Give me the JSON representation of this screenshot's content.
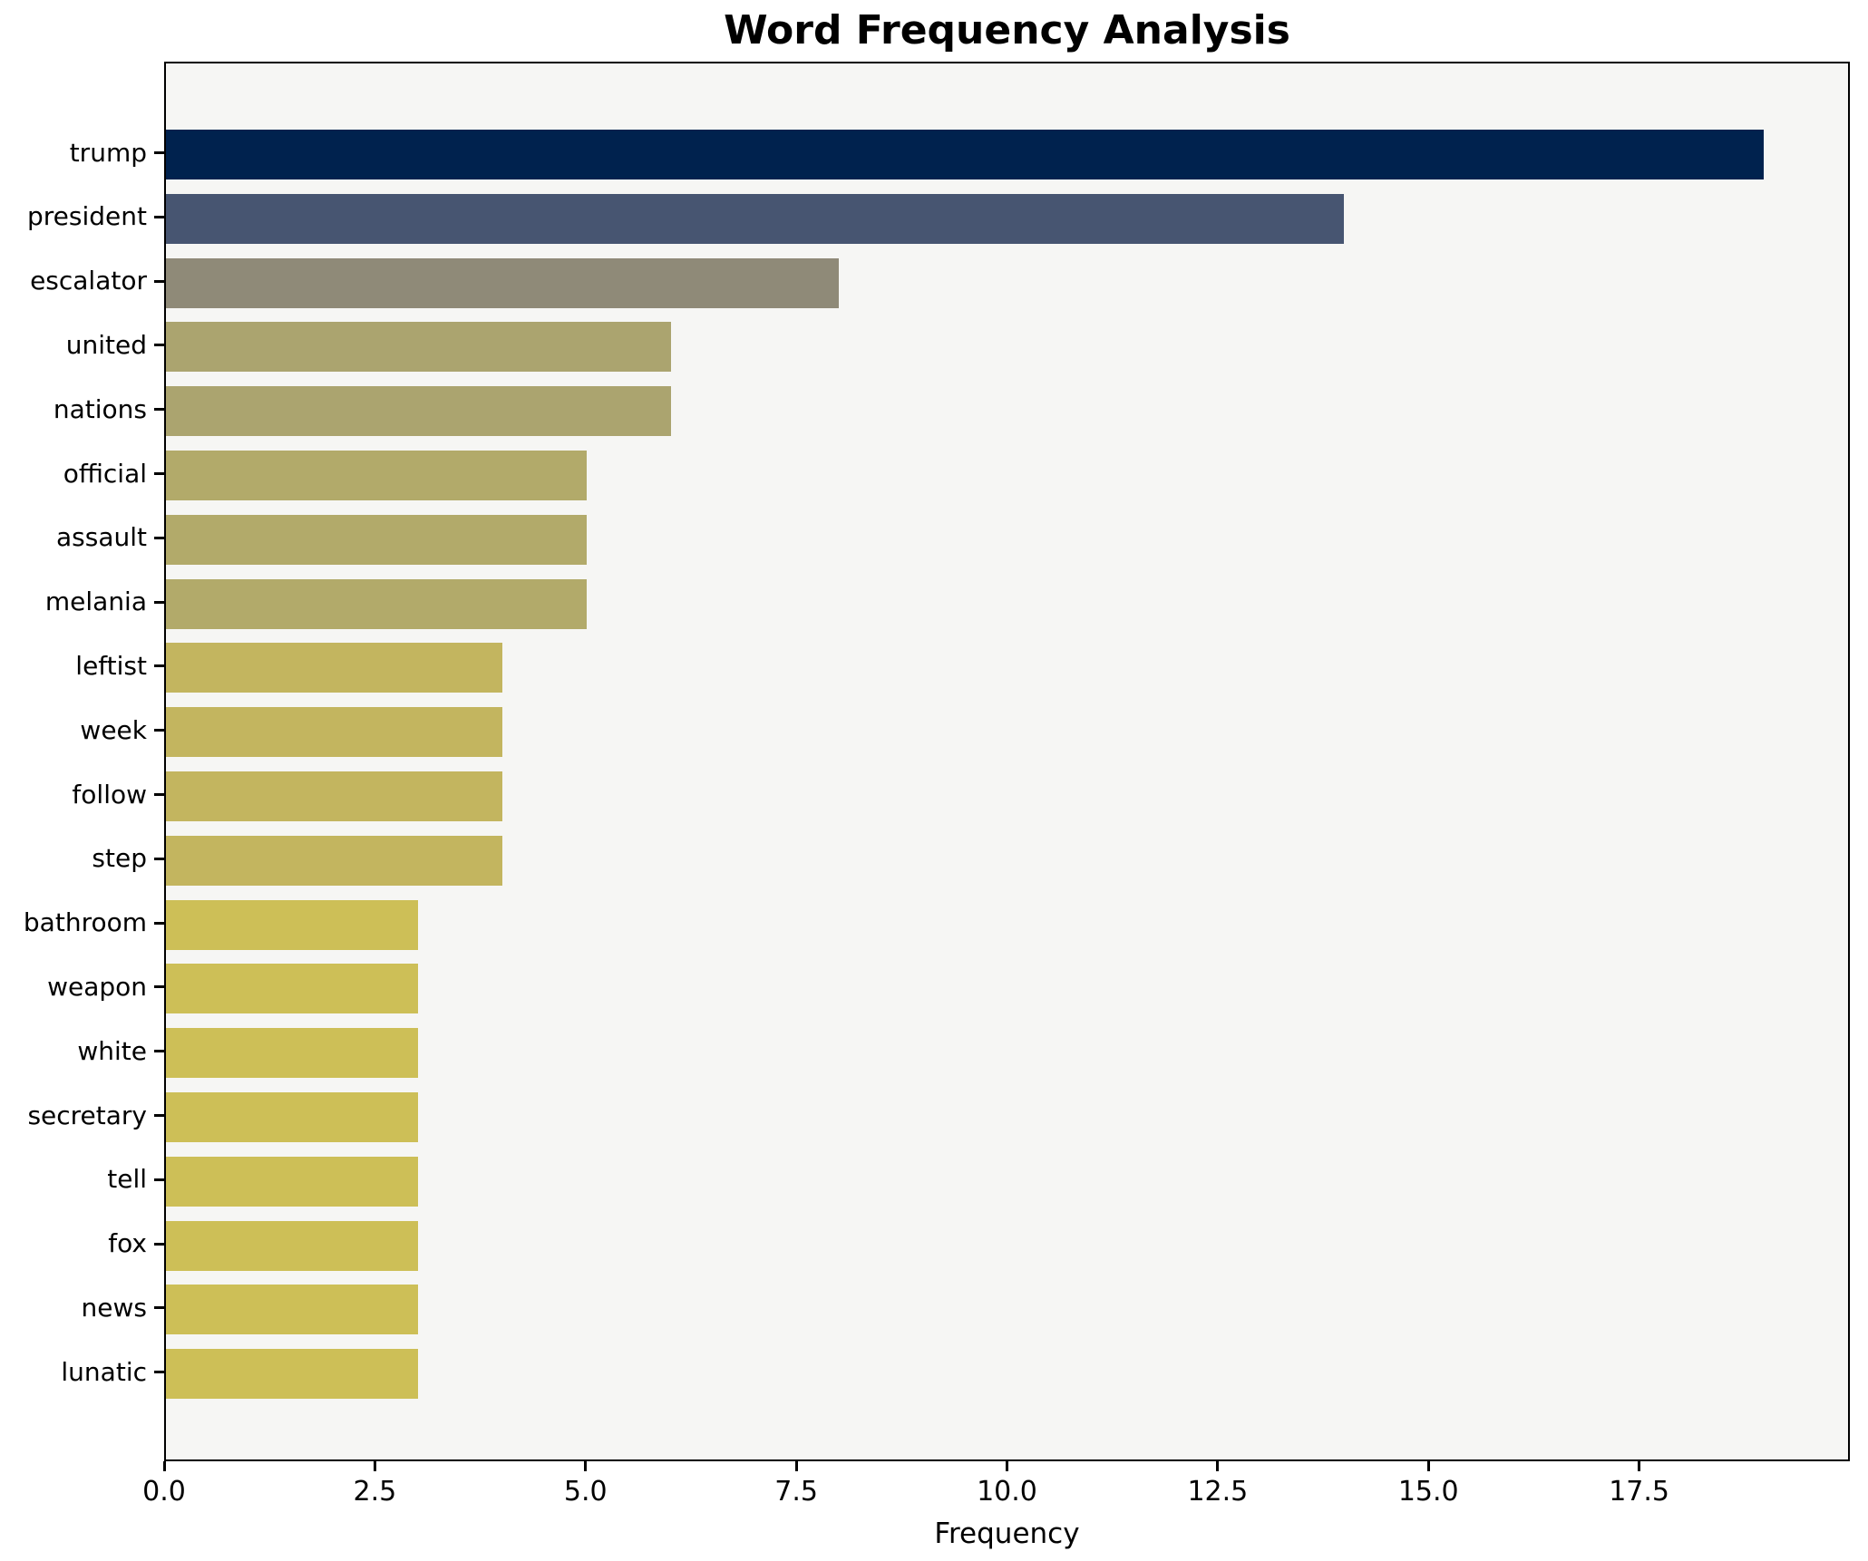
{
  "title": "Word Frequency Analysis",
  "chart_data": {
    "type": "bar",
    "orientation": "horizontal",
    "title": "Word Frequency Analysis",
    "xlabel": "Frequency",
    "ylabel": "",
    "categories": [
      "trump",
      "president",
      "escalator",
      "united",
      "nations",
      "official",
      "assault",
      "melania",
      "leftist",
      "week",
      "follow",
      "step",
      "bathroom",
      "weapon",
      "white",
      "secretary",
      "tell",
      "fox",
      "news",
      "lunatic"
    ],
    "values": [
      19,
      14,
      8,
      6,
      6,
      5,
      5,
      5,
      4,
      4,
      4,
      4,
      3,
      3,
      3,
      3,
      3,
      3,
      3,
      3
    ],
    "bar_colors": [
      "#00224e",
      "#475571",
      "#8f8a78",
      "#aba46f",
      "#aba46f",
      "#b2aa6a",
      "#b2aa6a",
      "#b2aa6a",
      "#c3b55f",
      "#c3b55f",
      "#c3b55f",
      "#c3b55f",
      "#cdbf57",
      "#cdbf57",
      "#cdbf57",
      "#cdbf57",
      "#cdbf57",
      "#cdbf57",
      "#cdbf57",
      "#cdbf57"
    ],
    "xlim": [
      0,
      20
    ],
    "xticks": [
      0,
      2.5,
      5,
      7.5,
      10,
      12.5,
      15,
      17.5
    ],
    "xtick_labels": [
      "0.0",
      "2.5",
      "5.0",
      "7.5",
      "10.0",
      "12.5",
      "15.0",
      "17.5"
    ],
    "grid": false,
    "legend": "none",
    "plot_bg": "#f6f6f4",
    "figure_bg": "#ffffff",
    "spine_color": "#000000"
  }
}
